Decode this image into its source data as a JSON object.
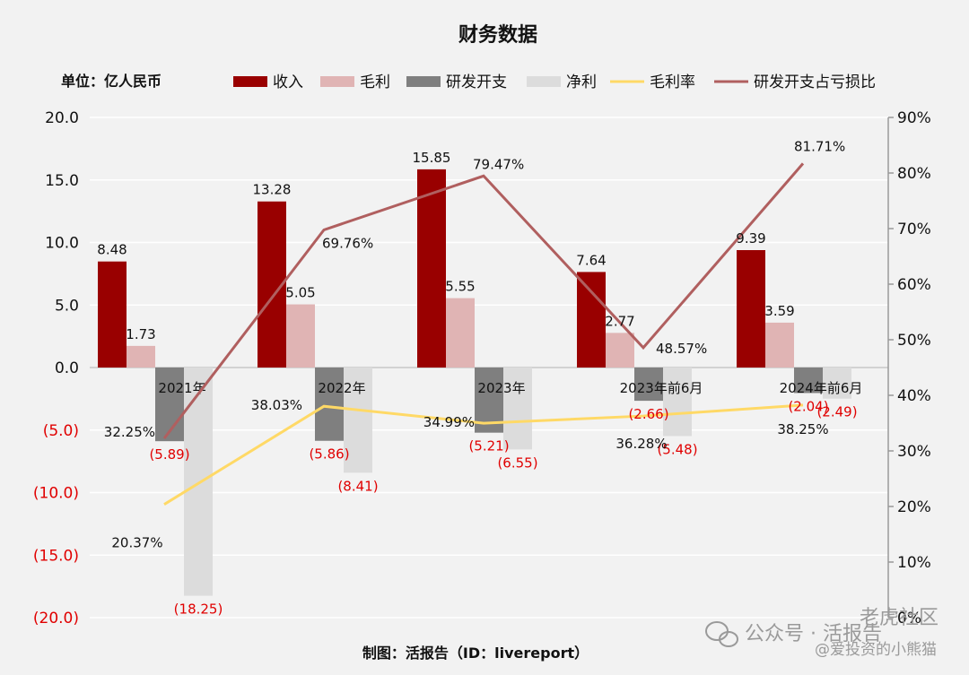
{
  "colors": {
    "revenue": "#990000",
    "gross_profit": "#e0b4b4",
    "rd_expense": "#7f7f7f",
    "net_profit": "#dcdcdc",
    "gross_margin_line": "#ffd966",
    "rd_ratio_line": "#b05f5f",
    "negative_text": "#e00000"
  },
  "chart_data": {
    "type": "bar",
    "title": "财务数据",
    "unit_label": "单位：亿人民币",
    "footer": "制图：活报告（ID：livereport）",
    "watermark": {
      "line1": "公众号 · 活报告",
      "line1_right": "老虎社区",
      "line2": "@爱投资的小熊猫"
    },
    "categories": [
      "2021年",
      "2022年",
      "2023年",
      "2023年前6月",
      "2024年前6月"
    ],
    "y_left": {
      "min": -20,
      "max": 20,
      "ticks": [
        20,
        15,
        10,
        5,
        0,
        -5,
        -10,
        -15,
        -20
      ],
      "tick_labels": [
        "20.0",
        "15.0",
        "10.0",
        "5.0",
        "0.0",
        "(5.0)",
        "(10.0)",
        "(15.0)",
        "(20.0)"
      ]
    },
    "y_right": {
      "min": 0,
      "max": 90,
      "ticks": [
        90,
        80,
        70,
        60,
        50,
        40,
        30,
        20,
        10,
        0
      ],
      "tick_labels": [
        "90%",
        "80%",
        "70%",
        "60%",
        "50%",
        "40%",
        "30%",
        "20%",
        "10%",
        "0%"
      ]
    },
    "series": [
      {
        "name": "收入",
        "kind": "bar",
        "values": [
          8.48,
          13.28,
          15.85,
          7.64,
          9.39
        ],
        "labels": [
          "8.48",
          "13.28",
          "15.85",
          "7.64",
          "9.39"
        ]
      },
      {
        "name": "毛利",
        "kind": "bar",
        "values": [
          1.73,
          5.05,
          5.55,
          2.77,
          3.59
        ],
        "labels": [
          "1.73",
          "5.05",
          "5.55",
          "2.77",
          "3.59"
        ]
      },
      {
        "name": "研发开支",
        "kind": "bar",
        "values": [
          -5.89,
          -5.86,
          -5.21,
          -2.66,
          -2.04
        ],
        "labels": [
          "(5.89)",
          "(5.86)",
          "(5.21)",
          "(2.66)",
          "(2.04)"
        ]
      },
      {
        "name": "净利",
        "kind": "bar",
        "values": [
          -18.25,
          -8.41,
          -6.55,
          -5.48,
          -2.49
        ],
        "labels": [
          "(18.25)",
          "(8.41)",
          "(6.55)",
          "(5.48)",
          "(2.49)"
        ]
      },
      {
        "name": "毛利率",
        "kind": "line",
        "axis": "right",
        "values": [
          20.37,
          38.03,
          34.99,
          36.28,
          38.25
        ],
        "labels": [
          "20.37%",
          "38.03%",
          "34.99%",
          "36.28%",
          "38.25%"
        ]
      },
      {
        "name": "研发开支占亏损比",
        "kind": "line",
        "axis": "right",
        "values": [
          32.25,
          69.76,
          79.47,
          48.57,
          81.71
        ],
        "labels": [
          "32.25%",
          "69.76%",
          "79.47%",
          "48.57%",
          "81.71%"
        ]
      }
    ]
  }
}
